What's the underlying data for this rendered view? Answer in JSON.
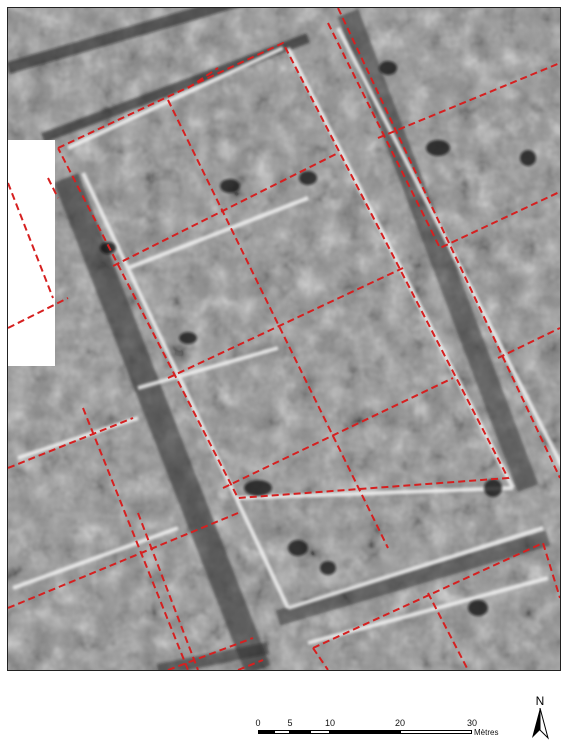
{
  "map": {
    "type": "magnetometry survey (grayscale)",
    "overlay_color": "#d62020",
    "gap_color": "#ffffff"
  },
  "scale": {
    "ticks": [
      "0",
      "5",
      "10",
      "20",
      "30"
    ],
    "unit": "Mètres"
  },
  "north": {
    "letter": "N",
    "icon": "north-arrow-icon"
  }
}
